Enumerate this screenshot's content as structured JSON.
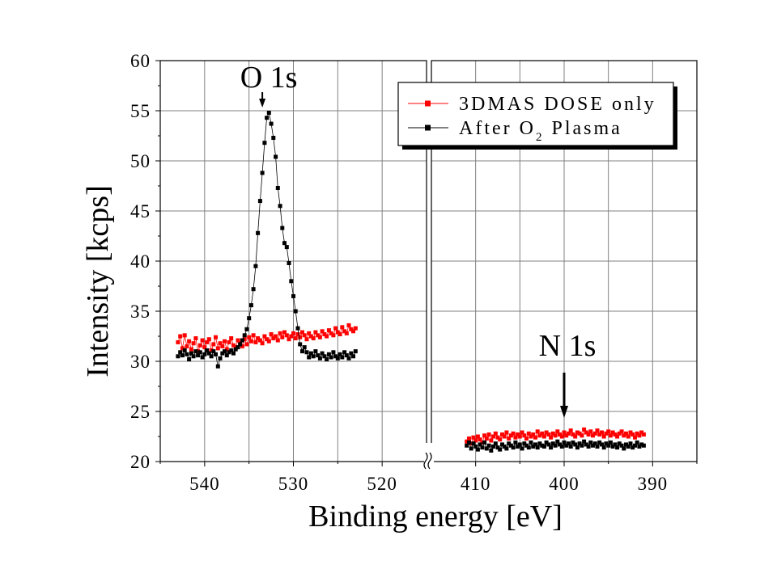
{
  "chart_data": {
    "type": "scatter",
    "title": "",
    "xlabel": "Binding energy [eV]",
    "ylabel": "Intensity [kcps]",
    "ylim": [
      20,
      60
    ],
    "yticks": [
      "20",
      "25",
      "30",
      "35",
      "40",
      "45",
      "50",
      "55",
      "60"
    ],
    "grid": true,
    "x_axis_broken": true,
    "panels": [
      {
        "xlim": [
          545,
          515
        ],
        "xticks": [
          "540",
          "530",
          "520"
        ]
      },
      {
        "xlim": [
          415,
          385
        ],
        "xticks": [
          "410",
          "400",
          "390"
        ]
      }
    ],
    "legend": {
      "position": "top-right",
      "entries": [
        {
          "label": "3DMAS DOSE only",
          "color": "#ff0000",
          "marker": "square"
        },
        {
          "label_main": "After O",
          "label_sub": "2",
          "label_end": " Plasma",
          "color": "#000000",
          "marker": "square"
        }
      ]
    },
    "annotations": [
      {
        "text": "O 1s",
        "x": 533.5,
        "y": 55
      },
      {
        "text": "N 1s",
        "x": 400,
        "y": 22.8
      }
    ],
    "series": [
      {
        "name": "3DMAS DOSE only",
        "color": "#ff0000",
        "segments": [
          {
            "x_start": 543,
            "x_end": 523,
            "n": 81,
            "values": [
              31.9,
              32.5,
              31.3,
              32.6,
              31.5,
              32.0,
              31.2,
              31.8,
              32.3,
              31.0,
              31.6,
              32.1,
              31.4,
              31.9,
              32.2,
              31.1,
              31.7,
              32.4,
              31.3,
              31.8,
              31.5,
              32.0,
              31.2,
              31.9,
              32.3,
              31.6,
              31.4,
              32.1,
              31.8,
              31.5,
              32.2,
              31.7,
              32.4,
              32.0,
              32.6,
              31.9,
              32.3,
              32.1,
              31.8,
              32.5,
              32.2,
              32.0,
              32.7,
              32.3,
              32.5,
              32.1,
              32.8,
              32.4,
              32.9,
              32.6,
              32.2,
              32.5,
              32.8,
              32.3,
              32.7,
              32.4,
              32.9,
              32.6,
              32.2,
              32.8,
              32.5,
              32.3,
              32.9,
              32.6,
              32.4,
              33.0,
              32.7,
              32.5,
              33.1,
              32.8,
              32.6,
              33.3,
              32.9,
              32.7,
              33.4,
              33.0,
              32.8,
              33.6,
              33.2,
              33.0,
              33.3
            ]
          },
          {
            "x_start": 411,
            "x_end": 391,
            "n": 81,
            "values": [
              22.0,
              22.3,
              21.8,
              22.4,
              22.1,
              22.5,
              22.2,
              21.9,
              22.6,
              22.3,
              22.7,
              22.1,
              22.5,
              22.8,
              22.4,
              22.2,
              22.7,
              22.5,
              22.9,
              22.3,
              22.6,
              22.8,
              22.4,
              22.7,
              22.5,
              22.9,
              22.6,
              22.3,
              22.8,
              22.5,
              22.7,
              22.4,
              23.0,
              22.6,
              22.8,
              22.5,
              22.9,
              22.7,
              22.4,
              22.8,
              22.6,
              23.0,
              22.7,
              22.5,
              22.9,
              22.6,
              22.8,
              23.1,
              22.7,
              22.5,
              22.9,
              22.8,
              22.6,
              23.2,
              22.9,
              22.7,
              23.0,
              22.6,
              22.8,
              23.1,
              22.7,
              22.9,
              22.5,
              22.8,
              23.0,
              22.6,
              22.9,
              22.7,
              22.5,
              22.8,
              23.0,
              22.6,
              22.8,
              22.5,
              22.9,
              22.7,
              22.4,
              22.8,
              22.6,
              22.9,
              22.7
            ]
          }
        ]
      },
      {
        "name": "After O2 Plasma",
        "color": "#000000",
        "segments": [
          {
            "x_start": 543,
            "x_end": 523,
            "n": 81,
            "values": [
              30.5,
              30.9,
              30.6,
              31.1,
              30.7,
              30.2,
              30.8,
              30.5,
              31.0,
              30.6,
              30.9,
              30.4,
              30.7,
              31.1,
              30.8,
              30.5,
              31.0,
              30.7,
              29.5,
              30.3,
              30.8,
              31.0,
              30.6,
              30.9,
              31.1,
              30.8,
              31.2,
              31.4,
              31.7,
              32.1,
              32.6,
              33.2,
              34.3,
              35.6,
              37.2,
              39.5,
              42.8,
              46.0,
              48.8,
              51.8,
              54.3,
              54.8,
              53.7,
              52.3,
              50.4,
              47.3,
              45.5,
              43.3,
              41.8,
              41.4,
              39.8,
              38.0,
              36.5,
              35.0,
              33.3,
              31.7,
              31.0,
              31.4,
              30.9,
              30.4,
              30.8,
              30.5,
              31.0,
              30.6,
              30.3,
              30.8,
              30.5,
              30.2,
              30.7,
              30.4,
              30.9,
              30.5,
              30.3,
              30.7,
              30.4,
              30.9,
              30.6,
              30.3,
              30.8,
              30.5,
              31.0
            ]
          },
          {
            "x_start": 411,
            "x_end": 391,
            "n": 81,
            "values": [
              21.6,
              21.9,
              21.3,
              21.8,
              21.5,
              21.2,
              21.7,
              21.4,
              21.9,
              21.3,
              21.6,
              21.1,
              21.5,
              21.8,
              21.4,
              21.2,
              21.7,
              21.5,
              21.3,
              21.8,
              21.6,
              21.4,
              21.9,
              21.5,
              21.7,
              21.3,
              21.8,
              21.6,
              21.4,
              21.9,
              21.5,
              21.7,
              21.4,
              21.8,
              21.6,
              21.5,
              21.9,
              21.7,
              21.4,
              21.8,
              21.6,
              22.0,
              21.7,
              21.5,
              21.9,
              21.6,
              21.8,
              21.5,
              21.9,
              21.7,
              21.4,
              21.8,
              21.6,
              22.0,
              21.7,
              21.5,
              21.9,
              21.6,
              21.8,
              21.5,
              21.9,
              21.7,
              21.4,
              21.8,
              21.6,
              21.9,
              21.5,
              21.7,
              21.4,
              21.8,
              21.6,
              21.3,
              21.7,
              21.5,
              21.8,
              21.4,
              21.6,
              21.9,
              21.5,
              21.7,
              21.6
            ]
          }
        ]
      }
    ]
  }
}
